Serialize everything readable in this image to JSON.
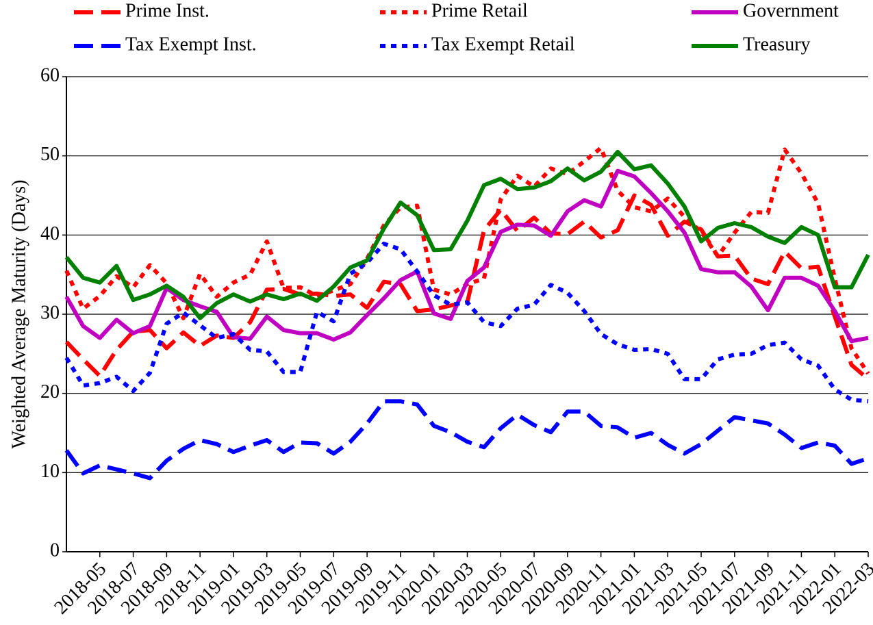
{
  "chart_data": {
    "type": "line",
    "ylabel": "Weighted Average Maturity (Days)",
    "categories": [
      null,
      null,
      "2018-05",
      null,
      "2018-07",
      null,
      "2018-09",
      null,
      "2018-11",
      null,
      "2019-01",
      null,
      "2019-03",
      null,
      "2019-05",
      null,
      "2019-07",
      null,
      "2019-09",
      null,
      "2019-11",
      null,
      "2020-01",
      null,
      "2020-03",
      null,
      "2020-05",
      null,
      "2020-07",
      null,
      "2020-09",
      null,
      "2020-11",
      null,
      "2021-01",
      null,
      "2021-03",
      null,
      "2021-05",
      null,
      "2021-07",
      null,
      "2021-09",
      null,
      "2021-11",
      null,
      "2022-01",
      null,
      "2022-03"
    ],
    "ylim": [
      0,
      60
    ],
    "yticks": [
      0,
      10,
      20,
      30,
      40,
      50,
      60
    ],
    "grid": true,
    "series": [
      {
        "name": "Prime Inst.",
        "color": "#ff0000",
        "dash": "dashed",
        "values": [
          26.5,
          24.3,
          22.2,
          25.5,
          27.8,
          28.0,
          25.7,
          27.7,
          26.0,
          27.3,
          27.0,
          29.0,
          33.1,
          33.2,
          32.5,
          32.6,
          32.3,
          32.5,
          30.8,
          34.1,
          33.8,
          30.4,
          30.6,
          31.1,
          31.5,
          40.6,
          43.2,
          40.5,
          42.2,
          40.2,
          40.1,
          41.7,
          39.7,
          40.6,
          45.0,
          43.8,
          39.9,
          41.7,
          40.7,
          37.3,
          37.4,
          34.5,
          33.8,
          37.9,
          35.8,
          36.0,
          29.7,
          23.6,
          21.8
        ]
      },
      {
        "name": "Prime Retail",
        "color": "#ff0000",
        "dash": "dotted",
        "values": [
          35.5,
          30.7,
          32.3,
          34.8,
          33.4,
          36.2,
          33.9,
          29.5,
          35.1,
          32.2,
          34.0,
          35.0,
          39.2,
          33.3,
          33.4,
          32.3,
          33.0,
          33.8,
          37.0,
          41.2,
          43.5,
          43.7,
          33.1,
          32.5,
          33.8,
          34.5,
          44.5,
          47.5,
          46.1,
          48.4,
          47.7,
          49.3,
          51.0,
          45.6,
          43.5,
          43.0,
          44.6,
          42.3,
          40.4,
          37.3,
          40.3,
          42.9,
          42.8,
          50.8,
          47.8,
          44.0,
          34.5,
          25.7,
          22.5
        ]
      },
      {
        "name": "Government",
        "color": "#c000c0",
        "dash": "solid",
        "values": [
          32.2,
          28.5,
          27.0,
          29.3,
          27.6,
          28.5,
          33.3,
          31.8,
          31.0,
          30.3,
          27.1,
          26.9,
          29.7,
          28.0,
          27.6,
          27.6,
          26.8,
          27.7,
          29.9,
          32.0,
          34.3,
          35.4,
          30.1,
          29.4,
          34.2,
          35.9,
          40.4,
          41.3,
          41.2,
          39.9,
          43.0,
          44.4,
          43.6,
          48.1,
          47.4,
          45.3,
          43.0,
          40.3,
          35.7,
          35.3,
          35.3,
          33.5,
          30.5,
          34.6,
          34.6,
          33.6,
          30.4,
          26.6,
          27.0
        ]
      },
      {
        "name": "Tax Exempt Inst.",
        "color": "#0000ff",
        "dash": "dashed",
        "values": [
          12.8,
          9.9,
          10.9,
          10.4,
          9.9,
          9.3,
          11.5,
          13.0,
          14.1,
          13.6,
          12.6,
          13.4,
          14.1,
          12.6,
          13.8,
          13.7,
          12.4,
          13.9,
          16.2,
          19.0,
          19.0,
          18.6,
          15.9,
          15.1,
          13.9,
          13.2,
          15.6,
          17.3,
          16.0,
          15.1,
          17.7,
          17.7,
          15.9,
          15.7,
          14.4,
          15.0,
          13.5,
          12.4,
          13.6,
          15.3,
          17.0,
          16.6,
          16.2,
          14.8,
          13.1,
          13.8,
          13.4,
          11.1,
          11.8
        ]
      },
      {
        "name": "Tax Exempt Retail",
        "color": "#0000ff",
        "dash": "dotted",
        "values": [
          24.5,
          21.0,
          21.3,
          22.1,
          20.3,
          22.6,
          28.8,
          30.2,
          28.6,
          27.0,
          27.5,
          25.5,
          25.3,
          22.7,
          22.7,
          30.3,
          29.1,
          35.1,
          36.5,
          38.9,
          38.2,
          35.4,
          32.4,
          31.2,
          31.5,
          29.0,
          28.5,
          30.7,
          31.2,
          33.7,
          32.7,
          30.4,
          27.5,
          26.2,
          25.5,
          25.6,
          25.0,
          21.8,
          21.8,
          24.3,
          24.9,
          25.0,
          26.1,
          26.4,
          24.3,
          23.5,
          20.5,
          19.2,
          19.0
        ]
      },
      {
        "name": "Treasury",
        "color": "#008000",
        "dash": "solid",
        "values": [
          37.2,
          34.6,
          34.0,
          36.1,
          31.8,
          32.5,
          33.6,
          32.2,
          29.5,
          31.4,
          32.5,
          31.6,
          32.5,
          31.9,
          32.6,
          31.7,
          33.5,
          35.9,
          36.8,
          40.8,
          44.1,
          42.5,
          38.1,
          38.2,
          41.8,
          46.3,
          47.1,
          45.8,
          46.0,
          46.8,
          48.4,
          46.9,
          48.0,
          50.5,
          48.3,
          48.8,
          46.5,
          43.6,
          39.2,
          40.9,
          41.5,
          41.0,
          39.8,
          39.0,
          41.0,
          40.0,
          33.4,
          33.4,
          37.5
        ]
      }
    ]
  }
}
